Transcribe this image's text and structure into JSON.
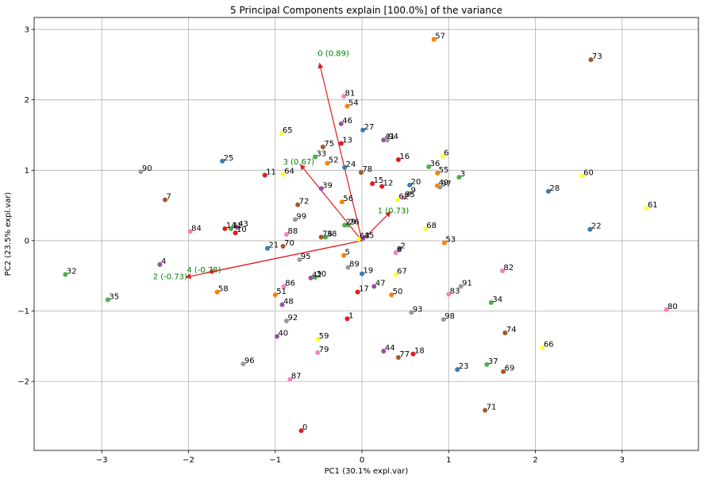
{
  "chart_data": {
    "type": "scatter",
    "title": "5 Principal Components explain [100.0%] of the variance",
    "xlabel": "PC1 (30.1% expl.var)",
    "ylabel": "PC2 (23.5% expl.var)",
    "xlim": [
      -3.78,
      3.88
    ],
    "ylim": [
      -2.98,
      3.17
    ],
    "xticks": [
      -3,
      -2,
      -1,
      0,
      1,
      2,
      3
    ],
    "xtick_labels": [
      "−3",
      "−2",
      "−1",
      "0",
      "1",
      "2",
      "3"
    ],
    "yticks": [
      -2,
      -1,
      0,
      1,
      2,
      3
    ],
    "ytick_labels": [
      "−2",
      "−1",
      "0",
      "1",
      "2",
      "3"
    ],
    "grid": true,
    "arrow_color": "#e31a1c",
    "arrow_label_color": "#008000",
    "loadings": [
      {
        "label": "0 (0.89)",
        "x": -0.49,
        "y": 2.52,
        "lx": -0.51,
        "ly": 2.62
      },
      {
        "label": "1 (0.73)",
        "x": 0.33,
        "y": 0.41,
        "lx": 0.18,
        "ly": 0.39
      },
      {
        "label": "2 (-0.73)",
        "x": -2.03,
        "y": -0.52,
        "lx": -2.41,
        "ly": -0.55
      },
      {
        "label": "3 (0.67)",
        "x": -0.71,
        "y": 1.08,
        "lx": -0.91,
        "ly": 1.08
      },
      {
        "label": "4 (-0.78)",
        "x": -1.77,
        "y": -0.45,
        "lx": -2.02,
        "ly": -0.45
      }
    ],
    "points": [
      {
        "label": "0",
        "x": -0.7,
        "y": -2.7,
        "color": "#e41a1c"
      },
      {
        "label": "1",
        "x": -0.17,
        "y": -1.11,
        "color": "#e41a1c"
      },
      {
        "label": "2",
        "x": 0.43,
        "y": -0.12,
        "color": "#377eb8"
      },
      {
        "label": "3",
        "x": 1.12,
        "y": 0.9,
        "color": "#4daf4a"
      },
      {
        "label": "4",
        "x": -2.33,
        "y": -0.34,
        "color": "#984ea3"
      },
      {
        "label": "5",
        "x": -0.21,
        "y": -0.21,
        "color": "#ff7f00"
      },
      {
        "label": "6",
        "x": 0.93,
        "y": 1.2,
        "color": "#ffff33"
      },
      {
        "label": "7",
        "x": -2.27,
        "y": 0.58,
        "color": "#a65628"
      },
      {
        "label": "8",
        "x": 0.39,
        "y": -0.17,
        "color": "#f781bf"
      },
      {
        "label": "9",
        "x": 0.55,
        "y": 0.67,
        "color": "#999999"
      },
      {
        "label": "10",
        "x": -1.46,
        "y": 0.11,
        "color": "#e41a1c"
      },
      {
        "label": "11",
        "x": -1.12,
        "y": 0.93,
        "color": "#e41a1c"
      },
      {
        "label": "12",
        "x": 0.23,
        "y": 0.77,
        "color": "#e41a1c"
      },
      {
        "label": "13",
        "x": -0.24,
        "y": 1.38,
        "color": "#e41a1c"
      },
      {
        "label": "14",
        "x": -1.58,
        "y": 0.17,
        "color": "#e41a1c"
      },
      {
        "label": "15",
        "x": 0.12,
        "y": 0.81,
        "color": "#e41a1c"
      },
      {
        "label": "16",
        "x": 0.42,
        "y": 1.15,
        "color": "#e41a1c"
      },
      {
        "label": "17",
        "x": -0.05,
        "y": -0.73,
        "color": "#e41a1c"
      },
      {
        "label": "18",
        "x": 0.59,
        "y": -1.61,
        "color": "#e41a1c"
      },
      {
        "label": "19",
        "x": 0.0,
        "y": -0.47,
        "color": "#377eb8"
      },
      {
        "label": "20",
        "x": 0.55,
        "y": 0.79,
        "color": "#377eb8"
      },
      {
        "label": "21",
        "x": -1.09,
        "y": -0.11,
        "color": "#377eb8"
      },
      {
        "label": "22",
        "x": 2.63,
        "y": 0.16,
        "color": "#377eb8"
      },
      {
        "label": "23",
        "x": 1.1,
        "y": -1.83,
        "color": "#377eb8"
      },
      {
        "label": "24",
        "x": -0.2,
        "y": 1.04,
        "color": "#377eb8"
      },
      {
        "label": "25",
        "x": -1.61,
        "y": 1.13,
        "color": "#377eb8"
      },
      {
        "label": "26",
        "x": -0.16,
        "y": 0.22,
        "color": "#4daf4a"
      },
      {
        "label": "27",
        "x": 0.01,
        "y": 1.57,
        "color": "#377eb8"
      },
      {
        "label": "28",
        "x": 2.15,
        "y": 0.7,
        "color": "#377eb8"
      },
      {
        "label": "29",
        "x": -0.2,
        "y": 0.22,
        "color": "#4daf4a"
      },
      {
        "label": "30",
        "x": -0.54,
        "y": -0.52,
        "color": "#4daf4a"
      },
      {
        "label": "31",
        "x": -1.51,
        "y": 0.17,
        "color": "#4daf4a"
      },
      {
        "label": "32",
        "x": -3.42,
        "y": -0.48,
        "color": "#4daf4a"
      },
      {
        "label": "33",
        "x": -0.54,
        "y": 1.19,
        "color": "#4daf4a"
      },
      {
        "label": "34",
        "x": 1.49,
        "y": -0.88,
        "color": "#4daf4a"
      },
      {
        "label": "35",
        "x": -2.93,
        "y": -0.84,
        "color": "#4daf4a"
      },
      {
        "label": "36",
        "x": 0.77,
        "y": 1.05,
        "color": "#4daf4a"
      },
      {
        "label": "37",
        "x": 1.44,
        "y": -1.76,
        "color": "#4daf4a"
      },
      {
        "label": "38",
        "x": -0.42,
        "y": 0.05,
        "color": "#4daf4a"
      },
      {
        "label": "39",
        "x": -0.47,
        "y": 0.74,
        "color": "#984ea3"
      },
      {
        "label": "40",
        "x": -0.98,
        "y": -1.36,
        "color": "#984ea3"
      },
      {
        "label": "41",
        "x": 0.25,
        "y": 1.43,
        "color": "#984ea3"
      },
      {
        "label": "42",
        "x": -0.59,
        "y": -0.53,
        "color": "#984ea3"
      },
      {
        "label": "43",
        "x": -1.44,
        "y": 0.19,
        "color": "#984ea3"
      },
      {
        "label": "44",
        "x": 0.25,
        "y": -1.57,
        "color": "#984ea3"
      },
      {
        "label": "45",
        "x": 0.01,
        "y": 0.03,
        "color": "#984ea3"
      },
      {
        "label": "46",
        "x": -0.24,
        "y": 1.66,
        "color": "#984ea3"
      },
      {
        "label": "47",
        "x": 0.14,
        "y": -0.65,
        "color": "#984ea3"
      },
      {
        "label": "48",
        "x": -0.92,
        "y": -0.91,
        "color": "#984ea3"
      },
      {
        "label": "49",
        "x": 0.87,
        "y": 0.78,
        "color": "#ff7f00"
      },
      {
        "label": "50",
        "x": 0.34,
        "y": -0.77,
        "color": "#ff7f00"
      },
      {
        "label": "51",
        "x": -1.0,
        "y": -0.77,
        "color": "#ff7f00"
      },
      {
        "label": "52",
        "x": -0.4,
        "y": 1.1,
        "color": "#ff7f00"
      },
      {
        "label": "53",
        "x": 0.95,
        "y": -0.03,
        "color": "#ff7f00"
      },
      {
        "label": "54",
        "x": -0.17,
        "y": 1.91,
        "color": "#ff7f00"
      },
      {
        "label": "55",
        "x": 0.87,
        "y": 0.96,
        "color": "#ff7f00"
      },
      {
        "label": "56",
        "x": -0.23,
        "y": 0.55,
        "color": "#ff7f00"
      },
      {
        "label": "57",
        "x": 0.83,
        "y": 2.86,
        "color": "#ff7f00"
      },
      {
        "label": "58",
        "x": -1.67,
        "y": -0.73,
        "color": "#ff7f00"
      },
      {
        "label": "59",
        "x": -0.51,
        "y": -1.4,
        "color": "#ffff33"
      },
      {
        "label": "60",
        "x": 2.54,
        "y": 0.92,
        "color": "#ffff33"
      },
      {
        "label": "61",
        "x": 3.28,
        "y": 0.46,
        "color": "#ffff33"
      },
      {
        "label": "62",
        "x": 0.41,
        "y": 0.58,
        "color": "#ffff33"
      },
      {
        "label": "63",
        "x": -0.04,
        "y": 0.02,
        "color": "#ffff33"
      },
      {
        "label": "64",
        "x": -0.91,
        "y": 0.94,
        "color": "#ffff33"
      },
      {
        "label": "65",
        "x": -0.93,
        "y": 1.52,
        "color": "#ffff33"
      },
      {
        "label": "66",
        "x": 2.08,
        "y": -1.52,
        "color": "#ffff33"
      },
      {
        "label": "67",
        "x": 0.39,
        "y": -0.48,
        "color": "#ffff33"
      },
      {
        "label": "68",
        "x": 0.73,
        "y": 0.17,
        "color": "#ffff33"
      },
      {
        "label": "69",
        "x": 1.63,
        "y": -1.86,
        "color": "#a65628"
      },
      {
        "label": "70",
        "x": -0.91,
        "y": -0.08,
        "color": "#a65628"
      },
      {
        "label": "71",
        "x": 1.42,
        "y": -2.41,
        "color": "#a65628"
      },
      {
        "label": "72",
        "x": -0.74,
        "y": 0.51,
        "color": "#a65628"
      },
      {
        "label": "73",
        "x": 2.64,
        "y": 2.57,
        "color": "#a65628"
      },
      {
        "label": "74",
        "x": 1.65,
        "y": -1.31,
        "color": "#a65628"
      },
      {
        "label": "75",
        "x": -0.45,
        "y": 1.33,
        "color": "#a65628"
      },
      {
        "label": "76",
        "x": -0.47,
        "y": 0.05,
        "color": "#a65628"
      },
      {
        "label": "77",
        "x": 0.42,
        "y": -1.66,
        "color": "#a65628"
      },
      {
        "label": "78",
        "x": -0.01,
        "y": 0.97,
        "color": "#a65628"
      },
      {
        "label": "79",
        "x": -0.51,
        "y": -1.59,
        "color": "#f781bf"
      },
      {
        "label": "80",
        "x": 3.51,
        "y": -0.98,
        "color": "#f781bf"
      },
      {
        "label": "81",
        "x": -0.21,
        "y": 2.05,
        "color": "#f781bf"
      },
      {
        "label": "82",
        "x": 1.62,
        "y": -0.43,
        "color": "#f781bf"
      },
      {
        "label": "83",
        "x": 1.0,
        "y": -0.76,
        "color": "#f781bf"
      },
      {
        "label": "84",
        "x": -1.98,
        "y": 0.13,
        "color": "#f781bf"
      },
      {
        "label": "85",
        "x": 0.48,
        "y": 0.61,
        "color": "#f781bf"
      },
      {
        "label": "86",
        "x": -0.9,
        "y": -0.65,
        "color": "#f781bf"
      },
      {
        "label": "87",
        "x": -0.83,
        "y": -1.97,
        "color": "#f781bf"
      },
      {
        "label": "88",
        "x": -0.87,
        "y": 0.09,
        "color": "#f781bf"
      },
      {
        "label": "89",
        "x": -0.16,
        "y": -0.38,
        "color": "#999999"
      },
      {
        "label": "90",
        "x": -2.55,
        "y": 0.98,
        "color": "#999999"
      },
      {
        "label": "91",
        "x": 1.14,
        "y": -0.65,
        "color": "#999999"
      },
      {
        "label": "92",
        "x": -0.87,
        "y": -1.14,
        "color": "#999999"
      },
      {
        "label": "93",
        "x": 0.57,
        "y": -1.02,
        "color": "#999999"
      },
      {
        "label": "94",
        "x": 0.29,
        "y": 1.43,
        "color": "#999999"
      },
      {
        "label": "95",
        "x": -0.72,
        "y": -0.27,
        "color": "#999999"
      },
      {
        "label": "96",
        "x": -1.37,
        "y": -1.75,
        "color": "#999999"
      },
      {
        "label": "97",
        "x": 0.9,
        "y": 0.76,
        "color": "#999999"
      },
      {
        "label": "98",
        "x": 0.94,
        "y": -1.12,
        "color": "#999999"
      },
      {
        "label": "99",
        "x": -0.77,
        "y": 0.3,
        "color": "#999999"
      }
    ]
  }
}
